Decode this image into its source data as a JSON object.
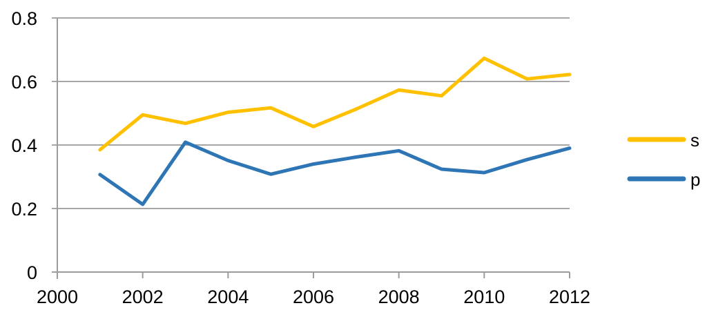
{
  "chart_data": {
    "type": "line",
    "x": [
      2001,
      2002,
      2003,
      2004,
      2005,
      2006,
      2007,
      2008,
      2009,
      2010,
      2011,
      2012
    ],
    "series": [
      {
        "name": "s",
        "color": "#FFC000",
        "values": [
          0.385,
          0.495,
          0.468,
          0.503,
          0.517,
          0.458,
          0.513,
          0.573,
          0.555,
          0.673,
          0.608,
          0.622
        ]
      },
      {
        "name": "p",
        "color": "#2E75B6",
        "values": [
          0.307,
          0.213,
          0.409,
          0.351,
          0.308,
          0.34,
          0.362,
          0.382,
          0.324,
          0.313,
          0.354,
          0.39
        ]
      }
    ],
    "title": "",
    "xlabel": "",
    "ylabel": "",
    "xlim": [
      2000,
      2012
    ],
    "ylim": [
      0,
      0.8
    ],
    "x_ticks": [
      2000,
      2002,
      2004,
      2006,
      2008,
      2010,
      2012
    ],
    "x_tick_labels": [
      "2000",
      "2002",
      "2004",
      "2006",
      "2008",
      "2010",
      "2012"
    ],
    "y_ticks": [
      0,
      0.2,
      0.4,
      0.6,
      0.8
    ],
    "y_tick_labels": [
      "0",
      "0.2",
      "0.4",
      "0.6",
      "0.8"
    ],
    "grid": true,
    "legend_position": "right",
    "colors": {
      "gridline": "#A6A6A6",
      "axis": "#9C9C9C",
      "text": "#000000",
      "background": "#FFFFFF"
    }
  }
}
